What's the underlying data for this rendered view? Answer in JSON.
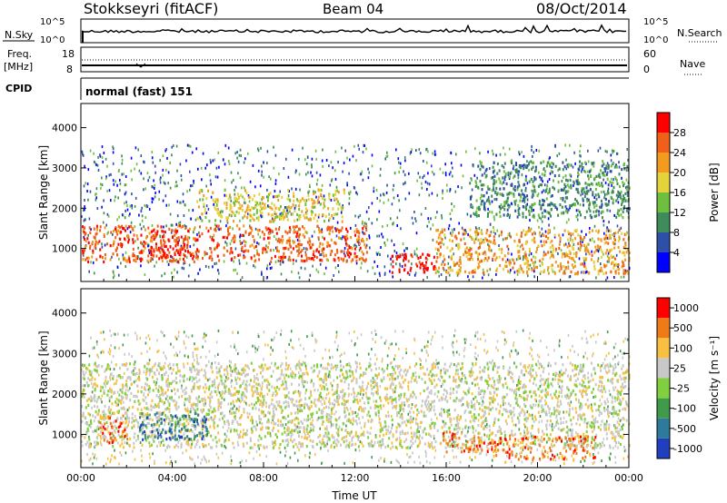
{
  "header": {
    "station": "Stokkseyri (fitACF)",
    "beam": "Beam 04",
    "date": "08/Oct/2014"
  },
  "top_panels": {
    "nsky_label": "N.Sky",
    "nsky_ticks_left": [
      "10^5",
      "10^0"
    ],
    "nsky_ticks_right": [
      "10^5",
      "10^0"
    ],
    "nsearch_label": "N.Search",
    "freq_label_line1": "Freq.",
    "freq_label_line2": "[MHz]",
    "freq_ticks": [
      "18",
      "8"
    ],
    "nave_label": "Nave",
    "nave_ticks": [
      "60",
      "0"
    ],
    "cpid_label": "CPID",
    "cpid_value": "normal (fast) 151"
  },
  "chart_data": [
    {
      "type": "heatmap",
      "title": "",
      "xlabel": "Time UT",
      "ylabel": "Slant Range [km]",
      "xticks": [
        "00:00",
        "04:00",
        "08:00",
        "12:00",
        "16:00",
        "20:00",
        "00:00"
      ],
      "yticks": [
        "1000",
        "2000",
        "3000",
        "4000"
      ],
      "ylim": [
        180,
        4600
      ],
      "colorbar_label": "Power [dB]",
      "colorbar_ticks": [
        "28",
        "24",
        "20",
        "16",
        "12",
        "8",
        "4"
      ],
      "colors": [
        "#0000ff",
        "#2d4fa8",
        "#3e8c5a",
        "#6fbf3f",
        "#e5d33b",
        "#f29b20",
        "#f06018",
        "#ff0000"
      ],
      "regions": [
        {
          "t0": 0.0,
          "t1": 12.5,
          "r0": 700,
          "r1": 1600,
          "level": 6
        },
        {
          "t0": 3.0,
          "t1": 4.8,
          "r0": 800,
          "r1": 1500,
          "level": 7
        },
        {
          "t0": 5.0,
          "t1": 11.5,
          "r0": 1700,
          "r1": 2500,
          "level": 4
        },
        {
          "t0": 13.5,
          "t1": 15.5,
          "r0": 400,
          "r1": 900,
          "level": 7
        },
        {
          "t0": 15.5,
          "t1": 24.0,
          "r0": 400,
          "r1": 1500,
          "level": 5
        },
        {
          "t0": 17.0,
          "t1": 24.0,
          "r0": 1800,
          "r1": 3200,
          "level": 2
        }
      ]
    },
    {
      "type": "heatmap",
      "title": "",
      "xlabel": "Time UT",
      "ylabel": "Slant Range [km]",
      "xticks": [
        "00:00",
        "04:00",
        "08:00",
        "12:00",
        "16:00",
        "20:00",
        "00:00"
      ],
      "yticks": [
        "1000",
        "2000",
        "3000",
        "4000"
      ],
      "ylim": [
        180,
        4600
      ],
      "colorbar_label": "Velocity [m s⁻¹]",
      "colorbar_ticks": [
        "1000",
        "500",
        "100",
        "25",
        "-25",
        "-100",
        "-500",
        "-1000"
      ],
      "colors": [
        "#1f3fbf",
        "#2e7a9a",
        "#3f9a4a",
        "#7fcf3f",
        "#c8c8c8",
        "#f7c040",
        "#f07a18",
        "#ff0000"
      ],
      "regions": [
        {
          "t0": 0.0,
          "t1": 24.0,
          "r0": 700,
          "r1": 2800,
          "level": 4
        },
        {
          "t0": 0.8,
          "t1": 2.0,
          "r0": 800,
          "r1": 1500,
          "level": 6
        },
        {
          "t0": 2.5,
          "t1": 5.5,
          "r0": 900,
          "r1": 1600,
          "level": 1
        },
        {
          "t0": 15.8,
          "t1": 18.0,
          "r0": 600,
          "r1": 1100,
          "level": 6
        },
        {
          "t0": 18.0,
          "t1": 22.5,
          "r0": 400,
          "r1": 1000,
          "level": 6
        }
      ]
    }
  ]
}
